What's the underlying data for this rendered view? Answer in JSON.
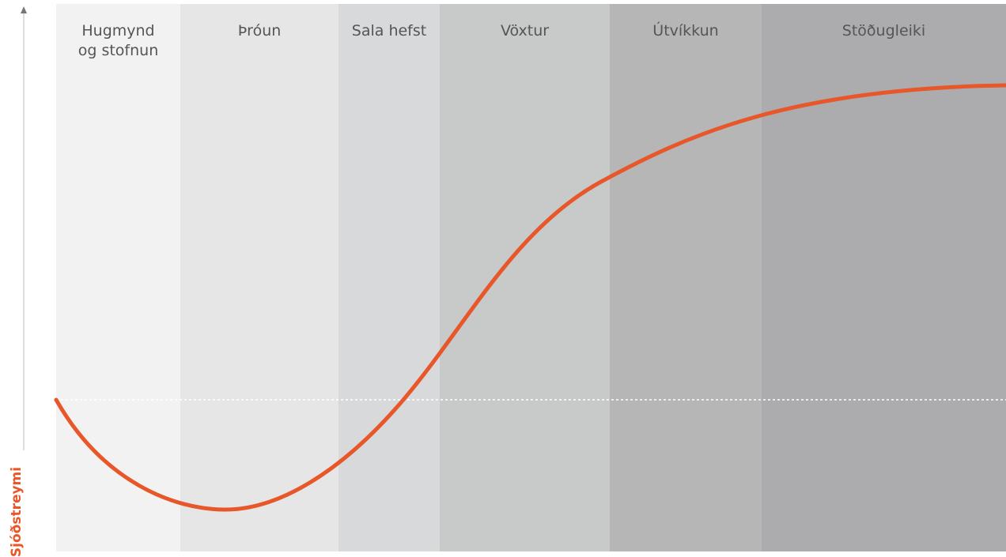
{
  "axis_label": "Sjóðstreymi",
  "stages": [
    {
      "label": "Hugmynd\nog stofnun"
    },
    {
      "label": "Þróun"
    },
    {
      "label": "Sala hefst"
    },
    {
      "label": "Vöxtur"
    },
    {
      "label": "Útvíkkun"
    },
    {
      "label": "Stöðugleiki"
    }
  ]
}
